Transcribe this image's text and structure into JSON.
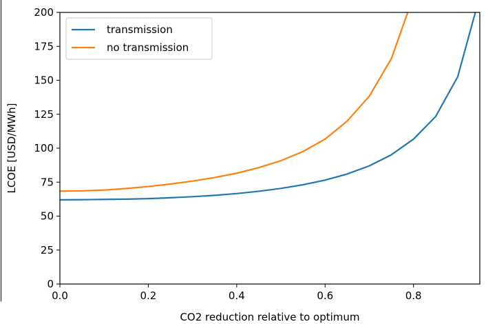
{
  "chart_data": {
    "type": "line",
    "title": "",
    "xlabel": "CO2 reduction relative to optimum",
    "ylabel": "LCOE [USD/MWh]",
    "xlim": [
      0.0,
      0.95
    ],
    "ylim": [
      0,
      200
    ],
    "xticks": [
      0.0,
      0.2,
      0.4,
      0.6,
      0.8
    ],
    "xtick_labels": [
      "0.0",
      "0.2",
      "0.4",
      "0.6",
      "0.8"
    ],
    "yticks": [
      0,
      25,
      50,
      75,
      100,
      125,
      150,
      175,
      200
    ],
    "ytick_labels": [
      "0",
      "25",
      "50",
      "75",
      "100",
      "125",
      "150",
      "175",
      "200"
    ],
    "grid": false,
    "legend_position": "top-left",
    "series": [
      {
        "name": "transmission",
        "color": "#1f77b4",
        "x": [
          0.0,
          0.05,
          0.1,
          0.15,
          0.2,
          0.25,
          0.3,
          0.35,
          0.4,
          0.45,
          0.5,
          0.55,
          0.6,
          0.65,
          0.7,
          0.75,
          0.8,
          0.85,
          0.9,
          0.95
        ],
        "y": [
          62.0,
          62.1,
          62.3,
          62.5,
          62.9,
          63.5,
          64.3,
          65.3,
          66.6,
          68.3,
          70.4,
          73.1,
          76.5,
          81.0,
          87.0,
          95.2,
          106.7,
          123.3,
          152.6,
          212.0
        ]
      },
      {
        "name": "no transmission",
        "color": "#ff7f0e",
        "x": [
          0.0,
          0.05,
          0.1,
          0.15,
          0.2,
          0.25,
          0.3,
          0.35,
          0.4,
          0.45,
          0.5,
          0.55,
          0.6,
          0.65,
          0.7,
          0.75,
          0.8
        ],
        "y": [
          68.4,
          68.6,
          69.2,
          70.3,
          71.8,
          73.6,
          75.8,
          78.4,
          81.6,
          85.7,
          90.8,
          97.6,
          106.7,
          120.0,
          138.3,
          166.0,
          212.0
        ]
      }
    ]
  }
}
